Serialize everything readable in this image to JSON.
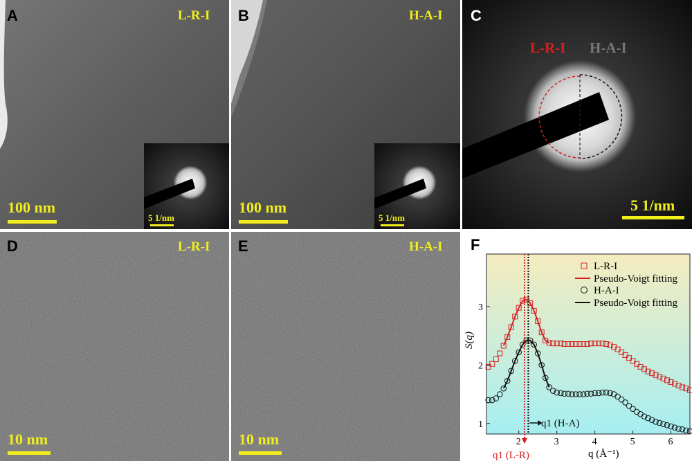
{
  "panels": {
    "A": {
      "letter": "A",
      "tag": "L-R-I",
      "scale": "100 nm",
      "inset_scale": "5 1/nm"
    },
    "B": {
      "letter": "B",
      "tag": "H-A-I",
      "scale": "100 nm",
      "inset_scale": "5 1/nm"
    },
    "C": {
      "letter": "C",
      "left_tag": "L-R-I",
      "right_tag": "H-A-I",
      "scale": "5 1/nm"
    },
    "D": {
      "letter": "D",
      "tag": "L-R-I",
      "scale": "10 nm"
    },
    "E": {
      "letter": "E",
      "tag": "H-A-I",
      "scale": "10 nm"
    },
    "F": {
      "letter": "F"
    }
  },
  "colors": {
    "label_yellow": "#f2ee1c",
    "lri_red": "#d42020",
    "hai_black": "#111111",
    "bg_top": "#f5ecbf",
    "bg_bottom": "#a6eef2"
  },
  "chart_data": {
    "type": "scatter",
    "xlabel": "q (Å⁻¹)",
    "ylabel": "S(q)",
    "xlim": [
      1.15,
      6.5
    ],
    "ylim": [
      0.82,
      3.9
    ],
    "xticks": [
      2,
      3,
      4,
      5,
      6
    ],
    "yticks": [
      1,
      2,
      3
    ],
    "legend_position": "top-right",
    "legend": [
      "L-R-I",
      "Pseudo-Voigt fitting",
      "H-A-I",
      "Pseudo-Voigt fitting"
    ],
    "annotations": {
      "q1_lr": {
        "text": "q1 (L-R)",
        "q": 2.15
      },
      "q1_ha": {
        "text": "q1 (H-A)",
        "q": 2.25
      }
    },
    "q": [
      1.2,
      1.3,
      1.4,
      1.5,
      1.6,
      1.7,
      1.8,
      1.9,
      2.0,
      2.1,
      2.2,
      2.3,
      2.4,
      2.5,
      2.6,
      2.7,
      2.8,
      2.9,
      3.0,
      3.1,
      3.2,
      3.3,
      3.4,
      3.5,
      3.6,
      3.7,
      3.8,
      3.9,
      4.0,
      4.1,
      4.2,
      4.3,
      4.4,
      4.5,
      4.6,
      4.7,
      4.8,
      4.9,
      5.0,
      5.1,
      5.2,
      5.3,
      5.4,
      5.5,
      5.6,
      5.7,
      5.8,
      5.9,
      6.0,
      6.1,
      6.2,
      6.3,
      6.4,
      6.5
    ],
    "series": [
      {
        "name": "L-R-I",
        "marker": "square",
        "color": "#d42020",
        "values": [
          1.97,
          2.02,
          2.1,
          2.2,
          2.33,
          2.48,
          2.65,
          2.83,
          2.98,
          3.1,
          3.12,
          3.06,
          2.93,
          2.75,
          2.56,
          2.42,
          2.38,
          2.37,
          2.37,
          2.37,
          2.36,
          2.36,
          2.36,
          2.36,
          2.36,
          2.36,
          2.36,
          2.37,
          2.37,
          2.37,
          2.37,
          2.36,
          2.34,
          2.31,
          2.27,
          2.22,
          2.17,
          2.12,
          2.07,
          2.02,
          1.97,
          1.93,
          1.89,
          1.86,
          1.83,
          1.8,
          1.77,
          1.74,
          1.71,
          1.68,
          1.65,
          1.62,
          1.6,
          1.57
        ]
      },
      {
        "name": "H-A-I",
        "marker": "circle",
        "color": "#111111",
        "values": [
          1.4,
          1.4,
          1.43,
          1.5,
          1.6,
          1.73,
          1.9,
          2.07,
          2.22,
          2.35,
          2.42,
          2.42,
          2.35,
          2.2,
          2.0,
          1.78,
          1.62,
          1.56,
          1.53,
          1.52,
          1.51,
          1.51,
          1.5,
          1.5,
          1.5,
          1.5,
          1.51,
          1.51,
          1.52,
          1.52,
          1.53,
          1.53,
          1.52,
          1.5,
          1.46,
          1.41,
          1.36,
          1.3,
          1.25,
          1.2,
          1.16,
          1.12,
          1.09,
          1.06,
          1.03,
          1.01,
          0.99,
          0.97,
          0.95,
          0.93,
          0.91,
          0.9,
          0.88,
          0.87
        ]
      }
    ],
    "fit_range": [
      1.6,
      2.8
    ]
  }
}
